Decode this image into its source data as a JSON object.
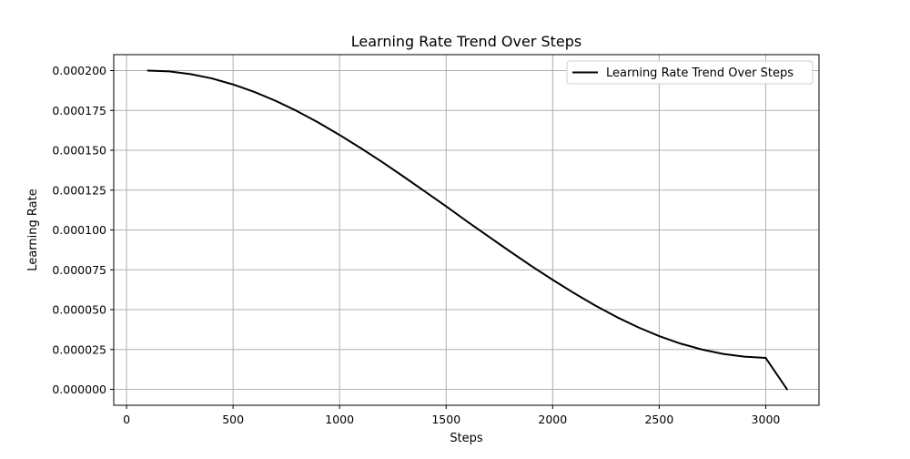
{
  "chart_data": {
    "type": "line",
    "title": "Learning Rate Trend Over Steps",
    "xlabel": "Steps",
    "ylabel": "Learning Rate",
    "xlim": [
      -60,
      3250
    ],
    "ylim": [
      -1e-05,
      0.00021
    ],
    "x_ticks": [
      0,
      500,
      1000,
      1500,
      2000,
      2500,
      3000
    ],
    "x_tick_labels": [
      "0",
      "500",
      "1000",
      "1500",
      "2000",
      "2500",
      "3000"
    ],
    "y_ticks": [
      0,
      2.5e-05,
      5e-05,
      7.5e-05,
      0.0001,
      0.000125,
      0.00015,
      0.000175,
      0.0002
    ],
    "y_tick_labels": [
      "0.000000",
      "0.000025",
      "0.000050",
      "0.000075",
      "0.000100",
      "0.000125",
      "0.000150",
      "0.000175",
      "0.000200"
    ],
    "grid": true,
    "legend_position": "top-right",
    "series": [
      {
        "name": "Learning Rate Trend Over Steps",
        "color": "#000000",
        "x": [
          100,
          200,
          300,
          400,
          500,
          600,
          700,
          800,
          900,
          1000,
          1100,
          1200,
          1300,
          1400,
          1500,
          1600,
          1700,
          1800,
          1900,
          2000,
          2100,
          2200,
          2300,
          2400,
          2500,
          2600,
          2700,
          2800,
          2900,
          3000,
          3100
        ],
        "y": [
          0.0002,
          0.0001995,
          0.0001978,
          0.0001951,
          0.0001913,
          0.0001866,
          0.000181,
          0.0001746,
          0.0001674,
          0.0001596,
          0.0001513,
          0.0001426,
          0.0001335,
          0.0001242,
          0.0001148,
          0.0001052,
          9.58e-05,
          8.65e-05,
          7.74e-05,
          6.87e-05,
          6.04e-05,
          5.26e-05,
          4.54e-05,
          3.9e-05,
          3.34e-05,
          2.87e-05,
          2.5e-05,
          2.22e-05,
          2.05e-05,
          1.97e-05,
          0.0
        ]
      }
    ]
  }
}
